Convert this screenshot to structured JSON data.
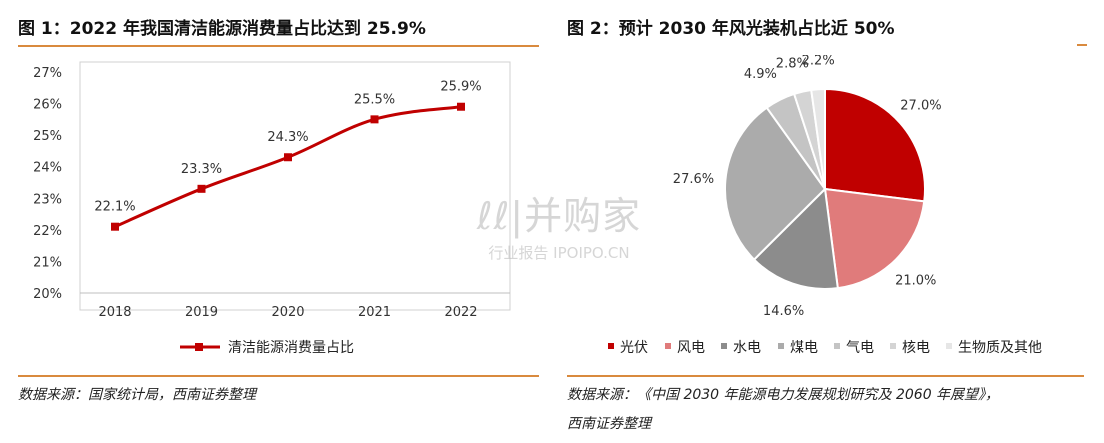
{
  "left_panel": {
    "title": "图 1：2022 年我国清洁能源消费量占比达到 25.9%",
    "source": "数据来源：国家统计局，西南证券整理"
  },
  "right_panel": {
    "title": "图 2：预计 2030 年风光装机占比近 50%",
    "source_line1": "数据来源：《中国 2030 年能源电力发展规划研究及 2060 年展望》，",
    "source_line2": "西南证券整理"
  },
  "watermark": {
    "main": "ℓℓ|并购家",
    "sub": "行业报告 IPOIPO.CN"
  },
  "chart_data": [
    {
      "type": "line",
      "title": "",
      "xlabel": "",
      "ylabel": "",
      "x": [
        "2018",
        "2019",
        "2020",
        "2021",
        "2022"
      ],
      "series": [
        {
          "name": "清洁能源消费量占比",
          "values": [
            22.1,
            23.3,
            24.3,
            25.5,
            25.9
          ],
          "color": "#c00000"
        }
      ],
      "data_labels": [
        "22.1%",
        "23.3%",
        "24.3%",
        "25.5%",
        "25.9%"
      ],
      "y_ticks": [
        20,
        21,
        22,
        23,
        24,
        25,
        26,
        27
      ],
      "y_tick_labels": [
        "20%",
        "21%",
        "22%",
        "23%",
        "24%",
        "25%",
        "26%",
        "27%"
      ],
      "ylim": [
        20,
        27
      ],
      "grid": false,
      "legend_position": "bottom"
    },
    {
      "type": "pie",
      "title": "",
      "categories": [
        "光伏",
        "风电",
        "水电",
        "煤电",
        "气电",
        "核电",
        "生物质及其他"
      ],
      "values": [
        27.0,
        21.0,
        14.6,
        27.6,
        4.9,
        2.8,
        2.2
      ],
      "labels": [
        "27.0%",
        "21.0%",
        "14.6%",
        "27.6%",
        "4.9%",
        "2.8%",
        "2.2%"
      ],
      "colors": [
        "#c00000",
        "#e07b7b",
        "#8c8c8c",
        "#ababab",
        "#c4c4c4",
        "#d4d4d4",
        "#e6e6e6"
      ],
      "legend_position": "bottom"
    }
  ]
}
